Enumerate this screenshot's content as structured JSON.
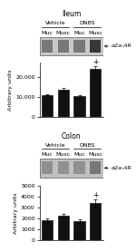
{
  "chart_data": [
    {
      "type": "blot",
      "title": "Ileum",
      "categories": [
        "Muc",
        "Musc",
        "Muc",
        "Musc"
      ],
      "annotations": [
        {
          "text": "Vehicle",
          "x": [
            0,
            1
          ]
        },
        {
          "text": "DNBS",
          "x": [
            2,
            3
          ]
        }
      ],
      "band_label": "α2a-AR",
      "color": "#c8c8c8",
      "colors": [
        "#787878",
        "#787878",
        "#787878",
        "#383838"
      ],
      "tick_labels": false
    },
    {
      "type": "bar",
      "categories": [
        "Muc",
        "Musc",
        "Muc",
        "Musc"
      ],
      "values": [
        11000,
        13500,
        10500,
        24000
      ],
      "errors": [
        400,
        900,
        400,
        1200
      ],
      "color": "#111111",
      "ylabel": "Arbitrary units",
      "ylim": [
        0,
        27000
      ],
      "yticks": [
        0,
        {
          "value": 10000,
          "label": "10,000"
        },
        {
          "value": 20000,
          "label": "20,000"
        }
      ],
      "annotations": [
        {
          "text": "+",
          "x": 3
        }
      ],
      "tick_labels": "y"
    },
    {
      "type": "blot",
      "title": "Colon",
      "categories": [
        "Muc",
        "Musc",
        "Muc",
        "Musc"
      ],
      "annotations": [
        {
          "text": "Vehicle",
          "x": [
            0,
            1
          ]
        },
        {
          "text": "DNBS",
          "x": [
            2,
            3
          ]
        }
      ],
      "band_label": "α2a-AR",
      "color": "#c0c0c0",
      "colors": [
        "#909090",
        "#909090",
        "#909090",
        "#787878"
      ],
      "tick_labels": false
    },
    {
      "type": "bar",
      "categories": [
        "Muc",
        "Musc",
        "Muc",
        "Musc"
      ],
      "values": [
        1800,
        2200,
        1700,
        3400
      ],
      "errors": [
        150,
        180,
        150,
        300
      ],
      "color": "#111111",
      "ylabel": "Arbitrary units",
      "ylim": [
        0,
        5000
      ],
      "yticks": [
        0,
        1000,
        2000,
        3000,
        4000,
        5000
      ],
      "annotations": [
        {
          "text": "+",
          "x": 3
        }
      ],
      "tick_labels": "y"
    }
  ]
}
